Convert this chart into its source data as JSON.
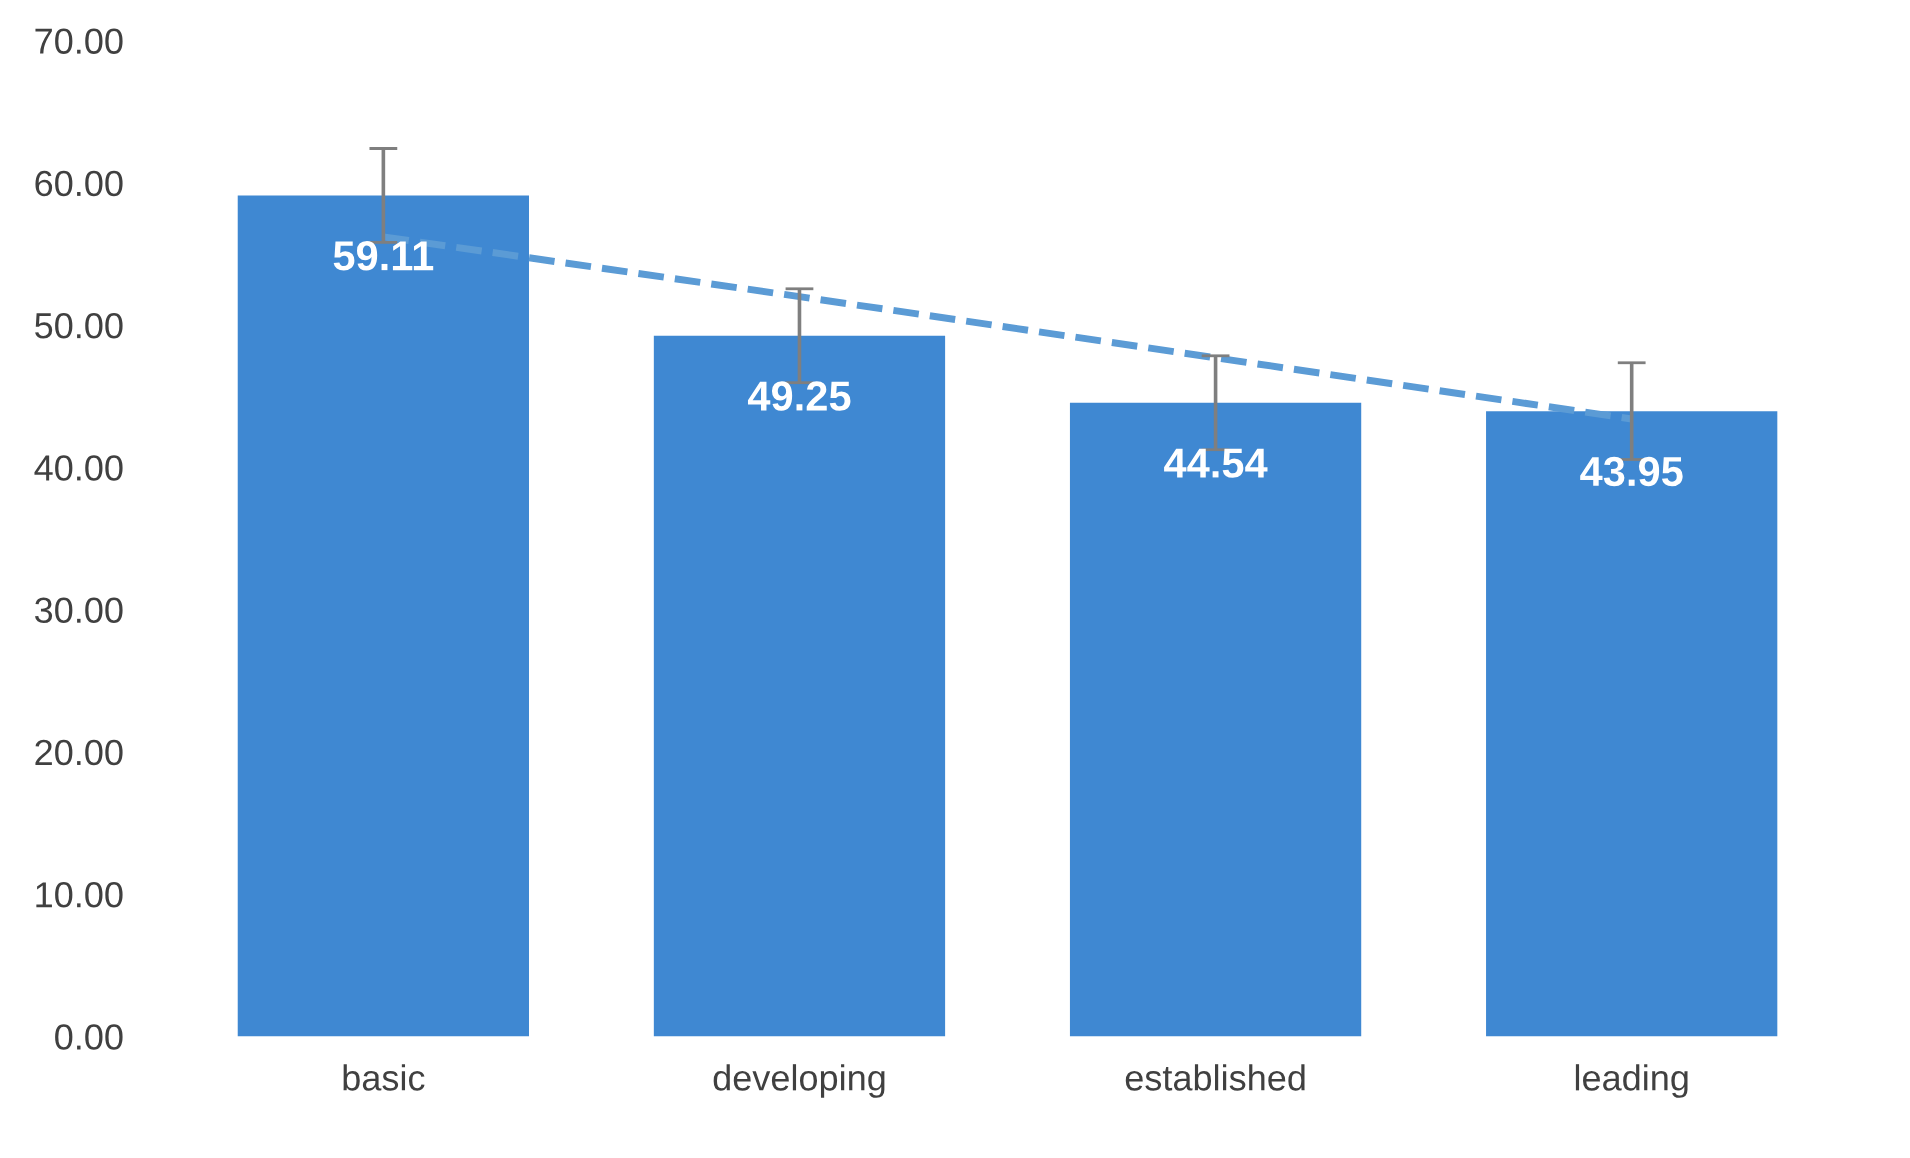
{
  "chart_data": {
    "type": "bar",
    "categories": [
      "basic",
      "developing",
      "established",
      "leading"
    ],
    "series": [
      {
        "color": "#3f88d2",
        "values": [
          59.11,
          49.25,
          44.54,
          43.95
        ],
        "errors": [
          3.3,
          3.3,
          3.3,
          3.4
        ],
        "value_labels": [
          "59.11",
          "49.25",
          "44.54",
          "43.95"
        ]
      },
      {
        "type": "line",
        "color": "#5b9bd5",
        "line_style": "dashed",
        "values": [
          56.2,
          52.0,
          47.7,
          43.4
        ]
      }
    ],
    "ylim": [
      0,
      70
    ],
    "yticks": [
      {
        "value": 0,
        "label": "0.00"
      },
      {
        "value": 10,
        "label": "10.00"
      },
      {
        "value": 20,
        "label": "20.00"
      },
      {
        "value": 30,
        "label": "30.00"
      },
      {
        "value": 40,
        "label": "40.00"
      },
      {
        "value": 50,
        "label": "50.00"
      },
      {
        "value": 60,
        "label": "60.00"
      },
      {
        "value": 70,
        "label": "70.00"
      }
    ],
    "grid": false,
    "legend": false
  }
}
